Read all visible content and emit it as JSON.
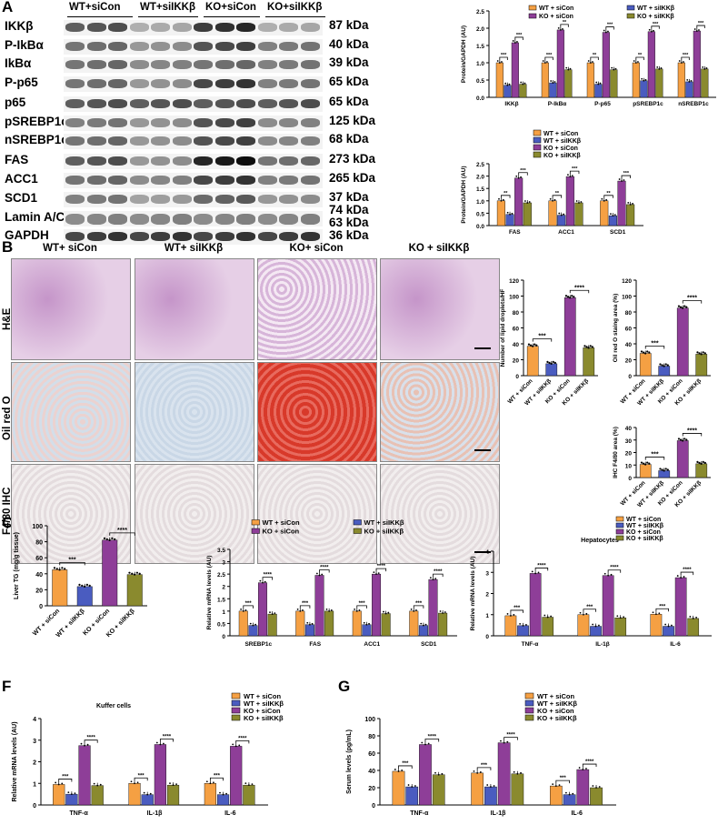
{
  "panels": {
    "A": "A",
    "B": "B",
    "C": "C",
    "D": "D",
    "E": "E",
    "F": "F",
    "G": "G"
  },
  "western": {
    "groups": [
      "WT+siCon",
      "WT+siIKKβ",
      "KO+siCon",
      "KO+siIKKβ"
    ],
    "rows": [
      {
        "label": "IKKβ",
        "kda": "87 kDa"
      },
      {
        "label": "P-IkBα",
        "kda": "40 kDa"
      },
      {
        "label": "IkBα",
        "kda": "39 kDa"
      },
      {
        "label": "P-p65",
        "kda": "65 kDa"
      },
      {
        "label": "p65",
        "kda": "65 kDa"
      },
      {
        "label": "pSREBP1c",
        "kda": "125 kDa"
      },
      {
        "label": "nSREBP1c",
        "kda": "68 kDa"
      },
      {
        "label": "FAS",
        "kda": "273 kDa"
      },
      {
        "label": "ACC1",
        "kda": "265 kDa"
      },
      {
        "label": "SCD1",
        "kda": "37 kDa"
      },
      {
        "label": "Lamin A/C",
        "kda": "74 kDa"
      },
      {
        "label": "",
        "kda": "63 kDa"
      },
      {
        "label": "GAPDH",
        "kda": "36 kDa"
      }
    ]
  },
  "micro": {
    "columns": [
      "WT+ siCon",
      "WT+ siIKKβ",
      "KO+ siCon",
      "KO + siIKKβ"
    ],
    "rows": [
      "H&E",
      "Oil red O",
      "F4/80 IHC"
    ],
    "colors": {
      "he": "#d6b2d8",
      "oil_wt": "#dfe6ee",
      "oil_ko": "#d8392a",
      "ihc": "#ebe6e6"
    }
  },
  "legend_groups": [
    "WT + siCon",
    "WT + siIKKβ",
    "KO + siCon",
    "KO + siIKKβ"
  ],
  "legend_groups_alt": [
    "WT + siCon",
    "WT + siIKKβ",
    "KO + siCon",
    "KO + siIKKβ"
  ],
  "colors": {
    "wtcon": "#f5a043",
    "wtikk": "#4a5cc0",
    "kocon": "#8e3e98",
    "koikk": "#8a8a2e"
  },
  "chart_data": [
    {
      "id": "A1",
      "type": "bar",
      "ylabel": "Protein/GAPDH (AU)",
      "ylim": [
        0,
        2.5
      ],
      "yticks": [
        "0.0",
        "0.5",
        "1.0",
        "1.5",
        "2.0",
        "2.5"
      ],
      "categories": [
        "IKKβ",
        "P-IkBα",
        "P-p65",
        "pSREBP1c",
        "nSREBP1c"
      ],
      "series": [
        {
          "name": "WT + siCon",
          "values": [
            1.0,
            1.0,
            1.0,
            1.0,
            1.0
          ]
        },
        {
          "name": "WT + siIKKβ",
          "values": [
            0.35,
            0.42,
            0.38,
            0.48,
            0.45
          ]
        },
        {
          "name": "KO + siCon",
          "values": [
            1.58,
            1.95,
            1.88,
            1.9,
            1.92
          ]
        },
        {
          "name": "KO + siIKKβ",
          "values": [
            0.38,
            0.8,
            0.8,
            0.82,
            0.82
          ]
        }
      ],
      "sig": [
        "***",
        "***",
        "***",
        "**",
        "**",
        "***",
        "**",
        "***",
        "***",
        "***"
      ]
    },
    {
      "id": "A2",
      "type": "bar",
      "ylabel": "Protein/GAPDH (AU)",
      "ylim": [
        0,
        2.5
      ],
      "yticks": [
        "0.0",
        "0.5",
        "1.0",
        "1.5",
        "2.0",
        "2.5"
      ],
      "categories": [
        "FAS",
        "ACC1",
        "SCD1"
      ],
      "series": [
        {
          "name": "WT + siCon",
          "values": [
            1.0,
            1.0,
            1.0
          ]
        },
        {
          "name": "WT + siIKKβ",
          "values": [
            0.45,
            0.42,
            0.4
          ]
        },
        {
          "name": "KO + siCon",
          "values": [
            1.92,
            1.98,
            1.8
          ]
        },
        {
          "name": "KO + siIKKβ",
          "values": [
            0.92,
            0.92,
            0.85
          ]
        }
      ],
      "sig": [
        "**",
        "***",
        "**",
        "***",
        "**",
        "***"
      ]
    },
    {
      "id": "B1",
      "type": "bar",
      "ylabel": "Number of lipid droplets/HF",
      "ylim": [
        0,
        120
      ],
      "yticks": [
        "0",
        "20",
        "40",
        "60",
        "80",
        "100",
        "120"
      ],
      "categories": [
        "WT + siCon",
        "WT + siIKKβ",
        "KO + siCon",
        "KO + siIKKβ"
      ],
      "values": [
        37,
        15,
        98,
        35
      ],
      "sig": [
        "***",
        "****"
      ]
    },
    {
      "id": "B2",
      "type": "bar",
      "ylabel": "Oil red O staing area (%)",
      "ylim": [
        0,
        120
      ],
      "yticks": [
        "0",
        "20",
        "40",
        "60",
        "80",
        "100",
        "120"
      ],
      "categories": [
        "WT + siCon",
        "WT + siIKKβ",
        "KO + siCon",
        "KO + siIKKβ"
      ],
      "values": [
        28,
        12,
        85,
        27
      ],
      "sig": [
        "***",
        "****"
      ]
    },
    {
      "id": "B3",
      "type": "bar",
      "ylabel": "IHC F4/80 area (%)",
      "ylim": [
        0,
        40
      ],
      "yticks": [
        "0",
        "10",
        "20",
        "30",
        "40"
      ],
      "categories": [
        "WT + siCon",
        "WT + siIKKβ",
        "KO + siCon",
        "KO + siIKKβ"
      ],
      "values": [
        10.5,
        5.5,
        29.5,
        11
      ],
      "sig": [
        "***",
        "****"
      ]
    },
    {
      "id": "C",
      "type": "bar",
      "ylabel": "Liver TG (mg/g tissue)",
      "ylim": [
        0,
        100
      ],
      "yticks": [
        "0",
        "20",
        "40",
        "60",
        "80",
        "100"
      ],
      "categories": [
        "WT + siCon",
        "WT + siIKKβ",
        "KO + siCon",
        "KO + siIKKβ"
      ],
      "values": [
        45,
        24,
        82,
        39
      ],
      "sig": [
        "***",
        "****"
      ]
    },
    {
      "id": "D",
      "type": "bar",
      "ylabel": "Relative mRNA levels (AU)",
      "ylim": [
        0,
        3.5
      ],
      "yticks": [
        "0",
        "0.5",
        "1",
        "1.5",
        "2",
        "2.5",
        "3",
        "3.5"
      ],
      "categories": [
        "SREBP1c",
        "FAS",
        "ACC1",
        "SCD1"
      ],
      "series": [
        {
          "name": "WT + siCon",
          "values": [
            1.0,
            1.0,
            1.0,
            1.0
          ]
        },
        {
          "name": "WT + siIKKβ",
          "values": [
            0.42,
            0.45,
            0.45,
            0.42
          ]
        },
        {
          "name": "KO + siCon",
          "values": [
            2.15,
            2.45,
            2.5,
            2.28
          ]
        },
        {
          "name": "KO + siIKKβ",
          "values": [
            0.88,
            1.0,
            0.9,
            0.92
          ]
        }
      ],
      "sig": [
        "***",
        "****",
        "***",
        "****",
        "***",
        "****",
        "***",
        "****"
      ]
    },
    {
      "id": "E",
      "type": "bar",
      "title": "Hepatocytes",
      "ylabel": "Relative mRNA levels (AU)",
      "ylim": [
        0,
        4
      ],
      "yticks": [
        "0",
        "1",
        "2",
        "3",
        "4"
      ],
      "categories": [
        "TNF-α",
        "IL-1β",
        "IL-6"
      ],
      "series": [
        {
          "name": "WT + siCon",
          "values": [
            0.95,
            1.0,
            1.02
          ]
        },
        {
          "name": "WT + siIKKβ",
          "values": [
            0.48,
            0.45,
            0.45
          ]
        },
        {
          "name": "KO + siCon",
          "values": [
            2.95,
            2.85,
            2.75
          ]
        },
        {
          "name": "KO + siIKKβ",
          "values": [
            0.88,
            0.85,
            0.82
          ]
        }
      ],
      "sig": [
        "***",
        "****",
        "***",
        "****",
        "***",
        "****"
      ]
    },
    {
      "id": "F",
      "type": "bar",
      "title": "Kuffer cells",
      "ylabel": "Relative mRNA levels (AU)",
      "ylim": [
        0,
        4
      ],
      "yticks": [
        "0",
        "1",
        "2",
        "3",
        "4"
      ],
      "categories": [
        "TNF-α",
        "IL-1β",
        "IL-6"
      ],
      "series": [
        {
          "name": "WT + siCon",
          "values": [
            0.95,
            1.0,
            1.0
          ]
        },
        {
          "name": "WT + siIKKβ",
          "values": [
            0.5,
            0.48,
            0.48
          ]
        },
        {
          "name": "KO + siCon",
          "values": [
            2.75,
            2.8,
            2.72
          ]
        },
        {
          "name": "KO + siIKKβ",
          "values": [
            0.9,
            0.92,
            0.92
          ]
        }
      ],
      "sig": [
        "***",
        "****",
        "***",
        "****",
        "***",
        "****"
      ]
    },
    {
      "id": "G",
      "type": "bar",
      "ylabel": "Serum levels (pg/mL)",
      "ylim": [
        0,
        100
      ],
      "yticks": [
        "0",
        "20",
        "40",
        "60",
        "80",
        "100"
      ],
      "categories": [
        "TNF-α",
        "IL-1β",
        "IL-6"
      ],
      "series": [
        {
          "name": "WT + siCon",
          "values": [
            39,
            37,
            22
          ]
        },
        {
          "name": "WT + siIKKβ",
          "values": [
            21,
            21,
            12
          ]
        },
        {
          "name": "KO + siCon",
          "values": [
            70,
            72,
            41
          ]
        },
        {
          "name": "KO + siIKKβ",
          "values": [
            35,
            36,
            20
          ]
        }
      ],
      "sig": [
        "***",
        "****",
        "***",
        "****",
        "***",
        "****"
      ]
    }
  ]
}
